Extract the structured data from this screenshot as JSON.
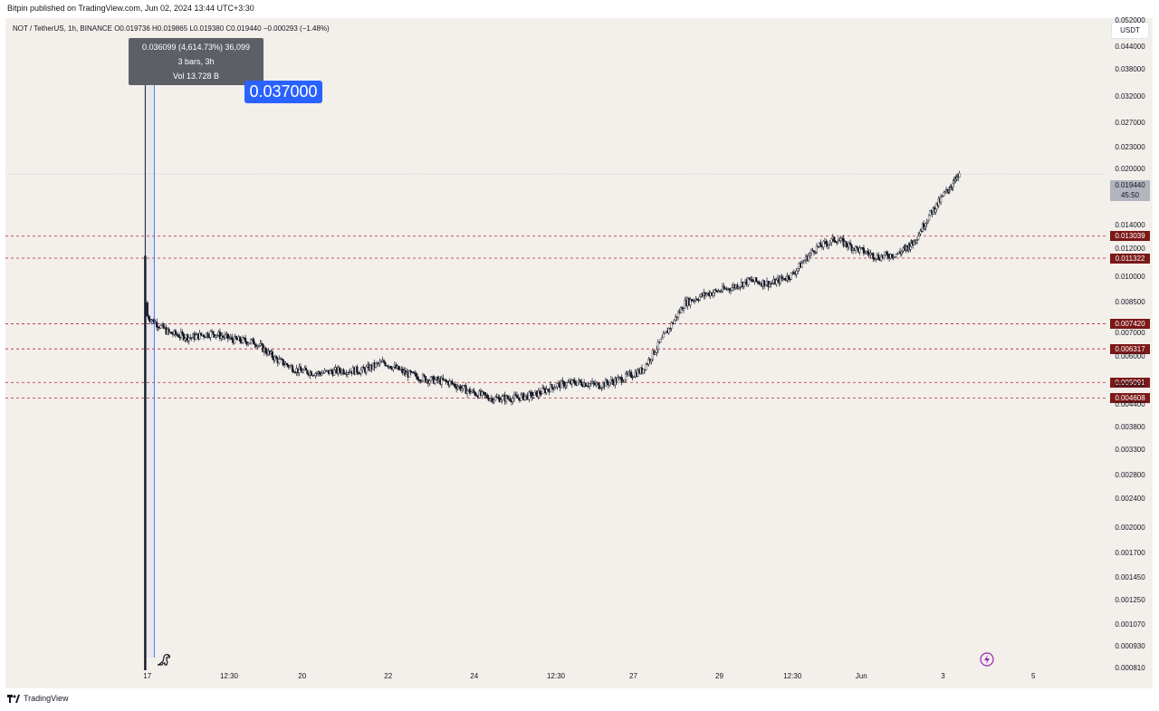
{
  "header": {
    "published_text": "Bitpin published on TradingView.com, Jun 02, 2024 13:44 UTC+3:30"
  },
  "symbol_info": {
    "text": "NOT / TetherUS, 1h, BINANCE  O0.019736  H0.019865  L0.019380  C0.019440  −0.000293 (−1.48%)"
  },
  "currency_badge": "USDT",
  "measure_tooltip": {
    "line1": "0.036099 (4,614.73%) 36,099",
    "line2": "3 bars, 3h",
    "line3": "Vol 13.728 B"
  },
  "price_callout": "0.037000",
  "last_price": {
    "value": "0.019440",
    "countdown": "45:50"
  },
  "levels": [
    {
      "label": "0.013039",
      "value": 0.013039
    },
    {
      "label": "0.011322",
      "value": 0.011322
    },
    {
      "label": "0.007420",
      "value": 0.00742
    },
    {
      "label": "0.006317",
      "value": 0.006317
    },
    {
      "label": "0.005091",
      "value": 0.005091
    },
    {
      "label": "0.004608",
      "value": 0.004608
    }
  ],
  "footer": {
    "brand": "TradingView"
  },
  "colors": {
    "background": "#f3efeb",
    "candle": "#131722",
    "level_line": "#b22833",
    "level_badge": "#7b1818",
    "callout": "#2962ff",
    "tooltip": "#5d5f66"
  },
  "icons": [
    "dinosaur-icon",
    "lightning-icon",
    "tradingview-logo-icon"
  ],
  "chart_data": {
    "type": "line",
    "scale": "log",
    "series_style": "candles",
    "y_ticks": [
      "0.052000",
      "0.044000",
      "0.038000",
      "0.032000",
      "0.027000",
      "0.023000",
      "0.020000",
      "0.017000",
      "0.014000",
      "0.012000",
      "0.010000",
      "0.008500",
      "0.007000",
      "0.006000",
      "0.005000",
      "0.004400",
      "0.003800",
      "0.003300",
      "0.002800",
      "0.002400",
      "0.002000",
      "0.001700",
      "0.001450",
      "0.001250",
      "0.001070",
      "0.000930",
      "0.000810"
    ],
    "y_tick_values": [
      0.052,
      0.044,
      0.038,
      0.032,
      0.027,
      0.023,
      0.02,
      0.017,
      0.014,
      0.012,
      0.01,
      0.0085,
      0.007,
      0.006,
      0.005,
      0.0044,
      0.0038,
      0.0033,
      0.0028,
      0.0024,
      0.002,
      0.0017,
      0.00145,
      0.00125,
      0.00107,
      0.00093,
      0.00081
    ],
    "x_ticks": [
      "17",
      "12:30",
      "20",
      "22",
      "24",
      "12:30",
      "27",
      "29",
      "12:30",
      "Jun",
      "3",
      "5"
    ],
    "x_tick_times": [
      16.5,
      18.4,
      20.1,
      22.1,
      24.1,
      26.0,
      27.8,
      29.8,
      31.5,
      33.1,
      35.0,
      37.1
    ],
    "ylim": [
      0.0008,
      0.053
    ],
    "xlim": [
      13.2,
      38.8
    ],
    "times": [
      16.5,
      17.0,
      17.5,
      18.0,
      18.5,
      19.0,
      19.5,
      20.0,
      20.5,
      21.0,
      21.5,
      22.0,
      22.5,
      23.0,
      23.5,
      24.0,
      24.5,
      25.0,
      25.5,
      26.0,
      26.5,
      27.0,
      27.5,
      28.0,
      28.5,
      29.0,
      29.5,
      30.0,
      30.5,
      31.0,
      31.5,
      32.0,
      32.5,
      33.0,
      33.5,
      34.0,
      34.3
    ],
    "closes": [
      0.0078,
      0.007,
      0.0068,
      0.007,
      0.0067,
      0.0066,
      0.0059,
      0.0055,
      0.0054,
      0.0055,
      0.0055,
      0.0058,
      0.0054,
      0.0052,
      0.0051,
      0.0048,
      0.0046,
      0.0046,
      0.0047,
      0.005,
      0.0051,
      0.005,
      0.0052,
      0.0055,
      0.0068,
      0.0085,
      0.009,
      0.0093,
      0.0098,
      0.0096,
      0.0102,
      0.012,
      0.0128,
      0.012,
      0.0114,
      0.0117,
      0.0125
    ],
    "closes_tail": [
      0.015,
      0.0175,
      0.0194
    ],
    "times_tail": [
      34.7,
      35.1,
      35.4
    ],
    "spike": {
      "time": 16.45,
      "high": 0.037,
      "low": 0.00081,
      "open": 0.0008,
      "close": 0.0115
    }
  }
}
